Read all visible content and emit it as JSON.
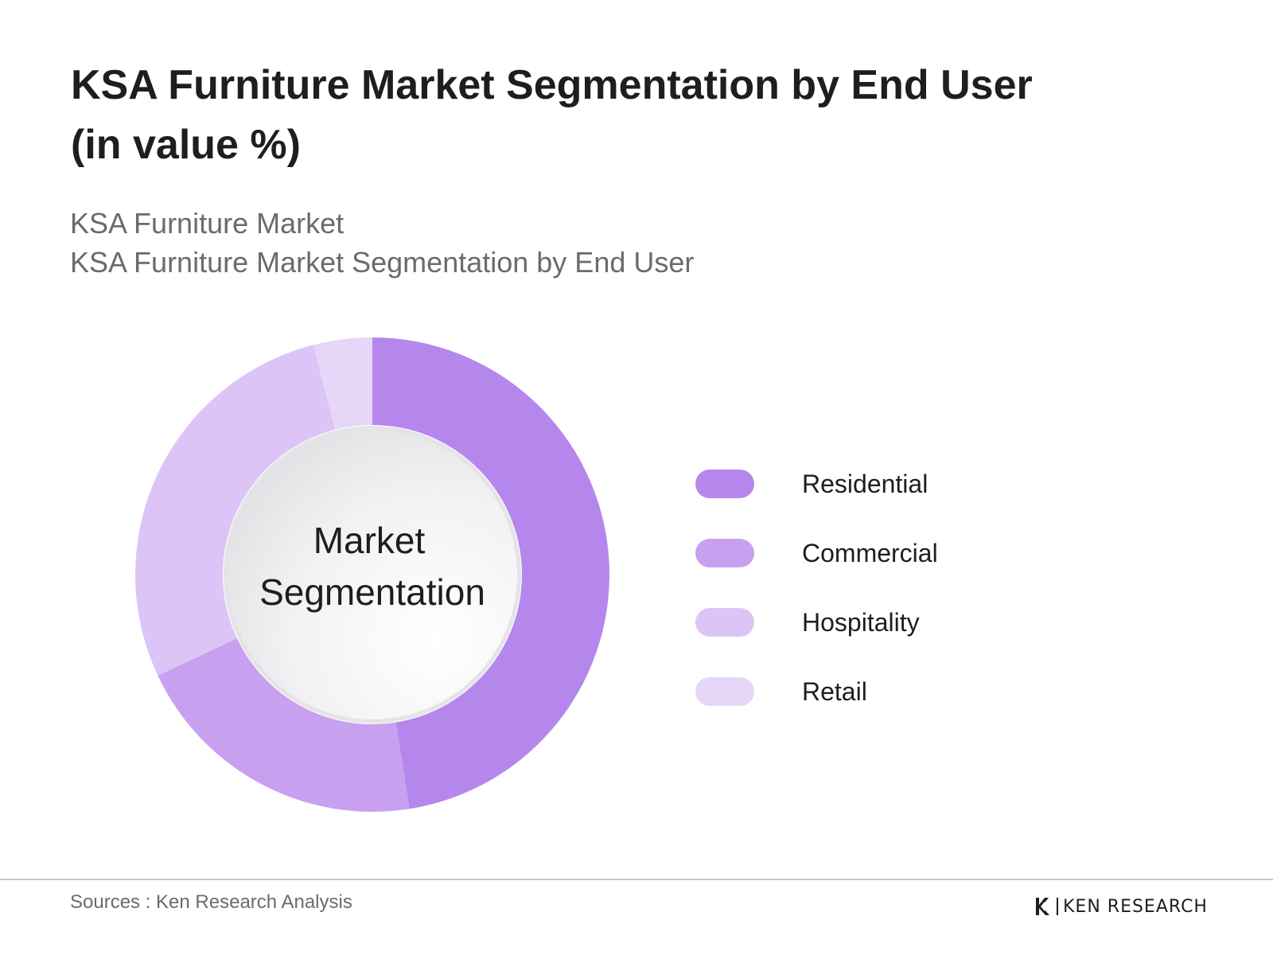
{
  "header": {
    "title_line1": "KSA Furniture Market Segmentation by End User",
    "title_line2": "(in value %)",
    "subtitle_line1": "KSA Furniture Market",
    "subtitle_line2": "KSA Furniture Market Segmentation by End User"
  },
  "chart_data": {
    "type": "pie",
    "donut": true,
    "center_label_line1": "Market",
    "center_label_line2": "Segmentation",
    "categories": [
      "Residential",
      "Commercial",
      "Hospitality",
      "Retail"
    ],
    "values": [
      47.5,
      20.5,
      28,
      4
    ],
    "unit": "%",
    "colors": [
      "#b587ec",
      "#c7a1f0",
      "#dcc5f6",
      "#e6d6f8"
    ],
    "legend_position": "right"
  },
  "footer": {
    "sources": "Sources : Ken Research Analysis",
    "brand": "KEN RESEARCH"
  }
}
